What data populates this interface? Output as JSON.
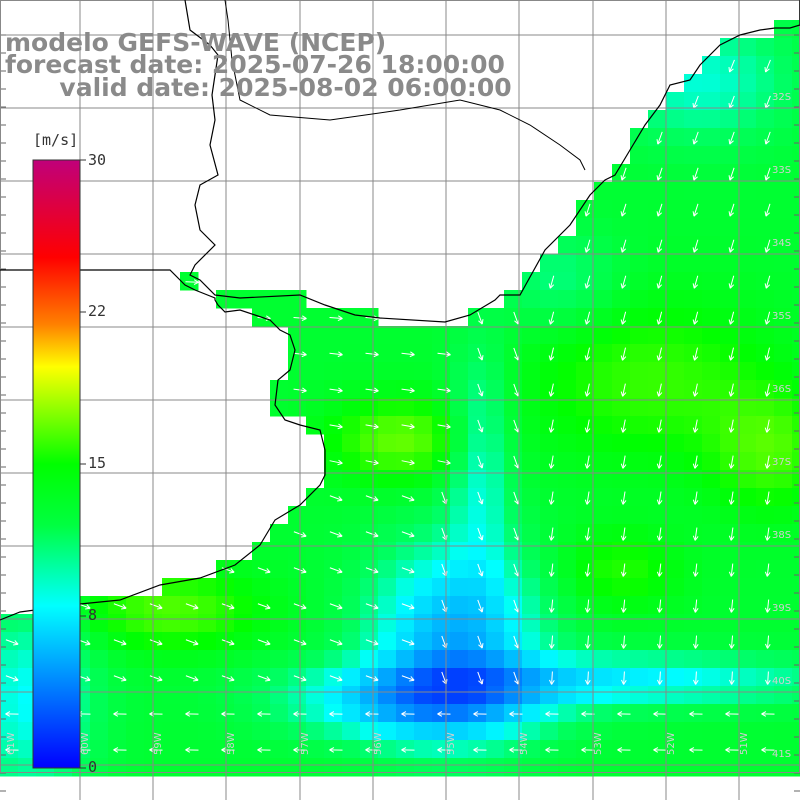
{
  "title": {
    "model": "modelo GEFS-WAVE (NCEP)",
    "forecast": "forecast date: 2025-07-26 18:00:00",
    "valid": "  valid date: 2025-08-02 06:00:00"
  },
  "colorbar": {
    "unit": "[m/s]",
    "ticks": [
      "30",
      "22",
      "15",
      "8",
      "0"
    ],
    "tick_values": [
      30,
      22,
      15,
      8,
      0
    ],
    "range": [
      0,
      30
    ],
    "colors": [
      "#0000ff",
      "#00ffff",
      "#00ff00",
      "#ffff00",
      "#ff0000",
      "#c0007a"
    ]
  },
  "axes": {
    "lat_labels": [
      "32S",
      "33S",
      "34S",
      "35S",
      "36S",
      "37S",
      "38S",
      "39S",
      "40S",
      "41S"
    ],
    "lon_labels": [
      "61W",
      "60W",
      "59W",
      "58W",
      "57W",
      "56W",
      "55W",
      "54W",
      "53W",
      "52W",
      "51W"
    ]
  },
  "map": {
    "projection": "lat-lon",
    "grid": true,
    "land_color": "#ffffff",
    "coast_color": "#000000",
    "features": [
      "Rio de la Plata",
      "Uruguay coast",
      "Buenos Aires coast"
    ],
    "field": "10m wind speed with direction arrows",
    "field_pattern": "mostly green 10-13 m/s, cyan/blue minimum 3-7 m/s south-center, yellow-green maxima 13-15 m/s in Rio de la Plata and east"
  }
}
